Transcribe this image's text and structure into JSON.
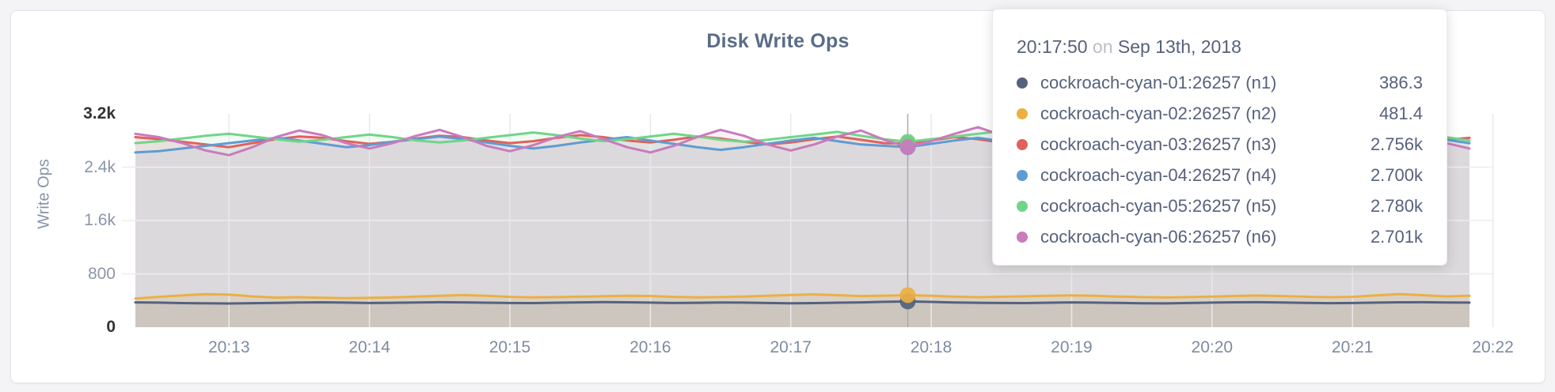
{
  "page": {
    "title": "Disk Write Ops"
  },
  "y_axis": {
    "title": "Write Ops",
    "ticks": [
      {
        "label": "3.2k",
        "value": 3200,
        "strong": true
      },
      {
        "label": "2.4k",
        "value": 2400,
        "strong": false
      },
      {
        "label": "1.6k",
        "value": 1600,
        "strong": false
      },
      {
        "label": "800",
        "value": 800,
        "strong": false
      },
      {
        "label": "0",
        "value": 0,
        "strong": true
      }
    ]
  },
  "x_axis": {
    "ticks": [
      {
        "label": "20:13",
        "index": 4
      },
      {
        "label": "20:14",
        "index": 10
      },
      {
        "label": "20:15",
        "index": 16
      },
      {
        "label": "20:16",
        "index": 22
      },
      {
        "label": "20:17",
        "index": 28
      },
      {
        "label": "20:18",
        "index": 34
      },
      {
        "label": "20:19",
        "index": 40
      },
      {
        "label": "20:20",
        "index": 46
      },
      {
        "label": "20:21",
        "index": 52
      },
      {
        "label": "20:22",
        "index": 58
      }
    ]
  },
  "tooltip": {
    "time": "20:17:50",
    "conj": "on",
    "date": "Sep 13th, 2018"
  },
  "chart_data": {
    "type": "line",
    "title": "Disk Write Ops",
    "ylabel": "Write Ops",
    "ylim": [
      0,
      3200
    ],
    "x_start": "20:12:20",
    "x_end": "20:21:50",
    "x_interval_seconds": 10,
    "grid": true,
    "hover_index": 33,
    "hover_time": "20:17:50",
    "series": [
      {
        "name": "cockroach-cyan-01:26257 (n1)",
        "color": "#54627D",
        "hover_value": 386.3,
        "tooltip_value": "386.3",
        "values": [
          372,
          368,
          362,
          358,
          355,
          360,
          365,
          370,
          373,
          369,
          363,
          366,
          371,
          375,
          372,
          367,
          363,
          361,
          367,
          372,
          377,
          373,
          368,
          363,
          366,
          371,
          369,
          363,
          358,
          361,
          367,
          372,
          380,
          386.3,
          379,
          371,
          366,
          363,
          361,
          367,
          372,
          369,
          364,
          359,
          357,
          363,
          368,
          373,
          375,
          370,
          365,
          360,
          363,
          368,
          373,
          375,
          371,
          368
        ]
      },
      {
        "name": "cockroach-cyan-02:26257 (n2)",
        "color": "#EBB041",
        "hover_value": 481.4,
        "tooltip_value": "481.4",
        "values": [
          430,
          455,
          478,
          495,
          488,
          462,
          445,
          450,
          442,
          436,
          440,
          447,
          460,
          472,
          481,
          470,
          455,
          448,
          452,
          458,
          465,
          472,
          468,
          455,
          447,
          452,
          460,
          471,
          483,
          492,
          480,
          467,
          473,
          481.4,
          470,
          458,
          450,
          456,
          463,
          470,
          477,
          470,
          460,
          451,
          446,
          452,
          460,
          468,
          475,
          467,
          457,
          450,
          455,
          478,
          497,
          480,
          462,
          470
        ]
      },
      {
        "name": "cockroach-cyan-03:26257 (n3)",
        "color": "#E2605D",
        "hover_value": 2756,
        "tooltip_value": "2.756k",
        "values": [
          2850,
          2820,
          2780,
          2740,
          2700,
          2760,
          2820,
          2860,
          2840,
          2790,
          2750,
          2780,
          2830,
          2870,
          2850,
          2800,
          2760,
          2790,
          2840,
          2880,
          2850,
          2800,
          2770,
          2810,
          2860,
          2830,
          2780,
          2740,
          2770,
          2820,
          2860,
          2810,
          2760,
          2756,
          2800,
          2850,
          2820,
          2770,
          2740,
          2780,
          2830,
          2870,
          2840,
          2790,
          2750,
          2790,
          2840,
          2880,
          2900,
          2850,
          2800,
          2760,
          2800,
          2850,
          2820,
          2780,
          2810,
          2840
        ]
      },
      {
        "name": "cockroach-cyan-04:26257 (n4)",
        "color": "#5E9CD3",
        "hover_value": 2700,
        "tooltip_value": "2.700k",
        "values": [
          2620,
          2640,
          2680,
          2720,
          2760,
          2800,
          2840,
          2800,
          2750,
          2700,
          2730,
          2780,
          2820,
          2860,
          2820,
          2770,
          2720,
          2680,
          2720,
          2770,
          2810,
          2850,
          2800,
          2750,
          2700,
          2660,
          2700,
          2750,
          2800,
          2840,
          2790,
          2740,
          2720,
          2700,
          2750,
          2800,
          2840,
          2790,
          2740,
          2700,
          2660,
          2700,
          2750,
          2790,
          2830,
          2780,
          2730,
          2690,
          2730,
          2780,
          2820,
          2770,
          2720,
          2680,
          2720,
          2770,
          2810,
          2760
        ]
      },
      {
        "name": "cockroach-cyan-05:26257 (n5)",
        "color": "#70D589",
        "hover_value": 2780,
        "tooltip_value": "2.780k",
        "values": [
          2760,
          2790,
          2830,
          2870,
          2900,
          2860,
          2820,
          2780,
          2810,
          2850,
          2890,
          2850,
          2800,
          2770,
          2800,
          2840,
          2880,
          2920,
          2880,
          2830,
          2790,
          2820,
          2860,
          2900,
          2860,
          2810,
          2780,
          2810,
          2850,
          2890,
          2930,
          2870,
          2820,
          2780,
          2820,
          2860,
          2900,
          2940,
          2890,
          2840,
          2800,
          2830,
          2870,
          2910,
          2870,
          2820,
          2790,
          2820,
          2860,
          2900,
          2860,
          2810,
          2780,
          2810,
          2850,
          2890,
          2850,
          2800
        ]
      },
      {
        "name": "cockroach-cyan-06:26257 (n6)",
        "color": "#C97BBD",
        "hover_value": 2701,
        "tooltip_value": "2.701k",
        "values": [
          2900,
          2850,
          2760,
          2650,
          2580,
          2700,
          2850,
          2950,
          2880,
          2760,
          2680,
          2760,
          2870,
          2960,
          2850,
          2720,
          2640,
          2730,
          2850,
          2940,
          2820,
          2700,
          2620,
          2720,
          2850,
          2960,
          2870,
          2740,
          2650,
          2740,
          2860,
          2950,
          2810,
          2701,
          2790,
          2900,
          3000,
          2880,
          2740,
          2650,
          2750,
          2880,
          2970,
          2840,
          2700,
          2620,
          2730,
          2860,
          2960,
          2830,
          2690,
          2610,
          2720,
          2850,
          3060,
          2900,
          2760,
          2680
        ]
      }
    ]
  }
}
